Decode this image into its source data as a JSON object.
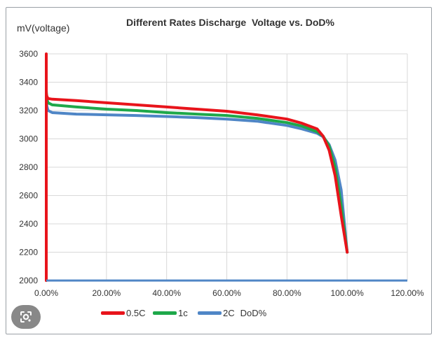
{
  "chart_data": {
    "type": "line",
    "title": "Different Rates Discharge  Voltage vs. DoD%",
    "ylabel": "mV(voltage)",
    "xlabel": "DoD%",
    "xlim": [
      0,
      1.2
    ],
    "ylim": [
      2000,
      3600
    ],
    "x_ticks": [
      "0.00%",
      "20.00%",
      "40.00%",
      "60.00%",
      "80.00%",
      "100.00%",
      "120.00%"
    ],
    "y_ticks": [
      "2000",
      "2200",
      "2400",
      "2600",
      "2800",
      "3000",
      "3200",
      "3400",
      "3600"
    ],
    "grid": true,
    "legend_position": "bottom",
    "series": [
      {
        "name": "0.5C",
        "color": "#e8141b",
        "x": [
          0.0,
          0.0,
          0.0,
          0.002,
          0.006,
          0.02,
          0.1,
          0.2,
          0.3,
          0.4,
          0.5,
          0.6,
          0.7,
          0.8,
          0.85,
          0.9,
          0.92,
          0.94,
          0.96,
          0.98,
          1.0
        ],
        "y": [
          2000,
          3600,
          3320,
          3300,
          3285,
          3280,
          3270,
          3255,
          3240,
          3225,
          3210,
          3195,
          3170,
          3140,
          3110,
          3070,
          3020,
          2920,
          2740,
          2460,
          2200
        ]
      },
      {
        "name": "1c",
        "color": "#1ea84a",
        "x": [
          0.0,
          0.002,
          0.006,
          0.02,
          0.1,
          0.2,
          0.3,
          0.4,
          0.5,
          0.6,
          0.7,
          0.8,
          0.85,
          0.9,
          0.92,
          0.94,
          0.96,
          0.98,
          1.0
        ],
        "y": [
          3340,
          3280,
          3255,
          3240,
          3225,
          3210,
          3200,
          3185,
          3175,
          3165,
          3145,
          3115,
          3090,
          3050,
          3020,
          2950,
          2800,
          2530,
          2200
        ]
      },
      {
        "name": "2C",
        "color": "#4f86c6",
        "x": [
          0.0,
          0.002,
          0.006,
          0.02,
          0.1,
          0.2,
          0.3,
          0.4,
          0.5,
          0.6,
          0.7,
          0.8,
          0.85,
          0.9,
          0.92,
          0.94,
          0.96,
          0.98,
          1.0
        ],
        "y": [
          3300,
          3230,
          3200,
          3185,
          3175,
          3170,
          3165,
          3158,
          3150,
          3140,
          3125,
          3095,
          3070,
          3040,
          3015,
          2960,
          2850,
          2640,
          2200
        ]
      }
    ]
  },
  "legend": {
    "items": [
      "0.5C",
      "1c",
      "2C"
    ],
    "xlabel_text": "DoD%"
  },
  "ui": {
    "lens_icon": "google-lens-icon"
  }
}
